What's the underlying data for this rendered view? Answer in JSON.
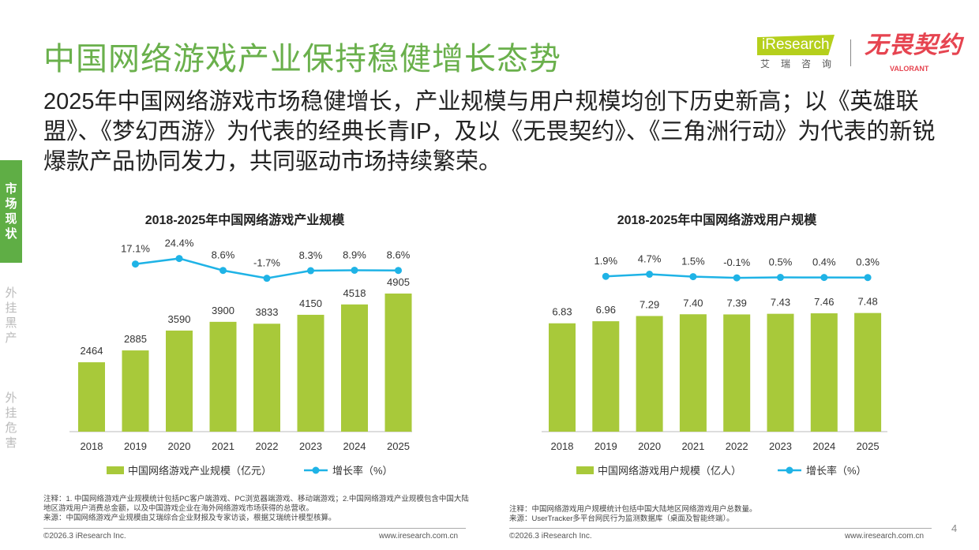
{
  "header": {
    "title": "中国网络游戏产业保持稳健增长态势",
    "subtitle": "2025年中国网络游戏市场稳健增长，产业规模与用户规模均创下历史新高；以《英雄联盟》、《梦幻西游》为代表的经典长青IP，及以《无畏契约》、《三角洲行动》为代表的新锐爆款产品协同发力，共同驱动市场持续繁荣。"
  },
  "logo": {
    "iresearch": "iResearch",
    "iresearch_cn": "艾瑞咨询",
    "valorant_cn": "无畏契约",
    "valorant": "VALORANT"
  },
  "sidebar": {
    "items": [
      {
        "label": "市场现状",
        "active": true
      },
      {
        "label": "外挂黑产",
        "active": false
      },
      {
        "label": "外挂危害",
        "active": false
      }
    ]
  },
  "colors": {
    "bar": "#a8c93a",
    "line": "#1fb3e6",
    "title": "#6ab04c"
  },
  "chart_data": [
    {
      "type": "bar+line",
      "title": "2018-2025年中国网络游戏产业规模",
      "categories": [
        "2018",
        "2019",
        "2020",
        "2021",
        "2022",
        "2023",
        "2024",
        "2025"
      ],
      "series": [
        {
          "name": "中国网络游戏产业规模（亿元）",
          "type": "bar",
          "values": [
            2464,
            2885,
            3590,
            3900,
            3833,
            4150,
            4518,
            4905
          ]
        },
        {
          "name": "增长率（%）",
          "type": "line",
          "values": [
            null,
            17.1,
            24.4,
            8.6,
            -1.7,
            8.3,
            8.9,
            8.6
          ],
          "labels": [
            "",
            "17.1%",
            "24.4%",
            "8.6%",
            "-1.7%",
            "8.3%",
            "8.9%",
            "8.6%"
          ]
        }
      ],
      "legend": "bottom"
    },
    {
      "type": "bar+line",
      "title": "2018-2025年中国网络游戏用户规模",
      "categories": [
        "2018",
        "2019",
        "2020",
        "2021",
        "2022",
        "2023",
        "2024",
        "2025"
      ],
      "series": [
        {
          "name": "中国网络游戏用户规模（亿人）",
          "type": "bar",
          "values": [
            6.83,
            6.96,
            7.29,
            7.4,
            7.39,
            7.43,
            7.46,
            7.48
          ]
        },
        {
          "name": "增长率（%）",
          "type": "line",
          "values": [
            null,
            1.9,
            4.7,
            1.5,
            -0.1,
            0.5,
            0.4,
            0.3
          ],
          "labels": [
            "",
            "1.9%",
            "4.7%",
            "1.5%",
            "-0.1%",
            "0.5%",
            "0.4%",
            "0.3%"
          ]
        }
      ],
      "legend": "bottom"
    }
  ],
  "notes": {
    "left": [
      "注释：1. 中国网络游戏产业规模统计包括PC客户端游戏、PC浏览器端游戏、移动端游戏；2.中国网络游戏产业规模包含中国大陆地区游戏用户消费总金额，以及中国游戏企业在海外网络游戏市场获得的总营收。",
      "来源：中国网络游戏产业规模由艾瑞综合企业财报及专家访谈，根据艾瑞统计模型核算。"
    ],
    "right": [
      "注释：中国网络游戏用户规模统计包括中国大陆地区网络游戏用户总数量。",
      "来源：UserTracker多平台网民行为监测数据库（桌面及智能终端）。"
    ]
  },
  "footer": {
    "copyright": "©2026.3 iResearch Inc.",
    "url": "www.iresearch.com.cn",
    "page": "4"
  }
}
